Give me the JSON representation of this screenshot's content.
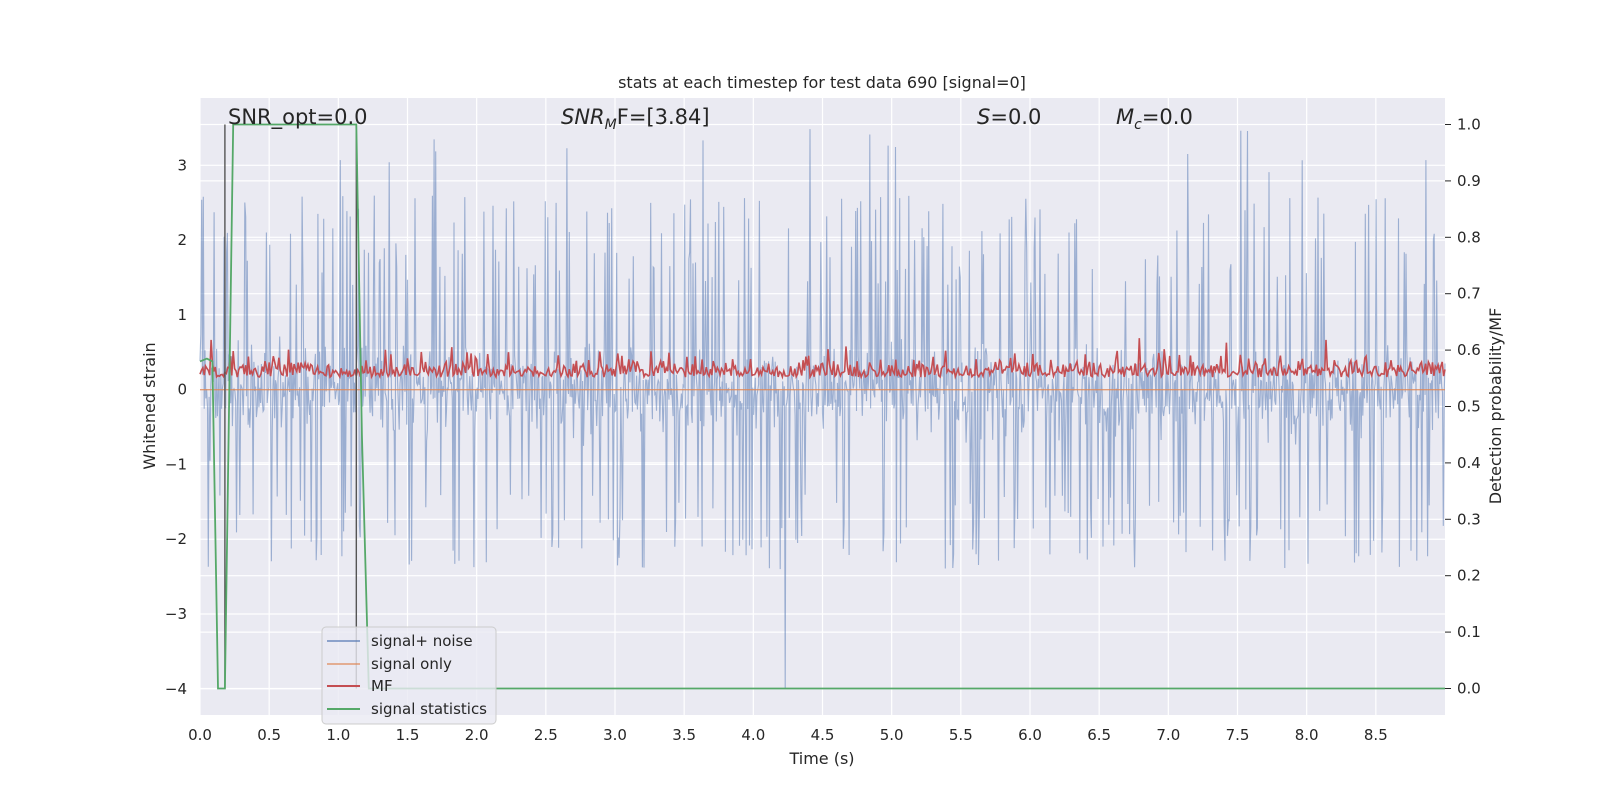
{
  "chart_data": {
    "type": "line",
    "title": "stats at each timestep for test data 690 [signal=0]",
    "xlabel": "Time (s)",
    "ylabel": "Whitened strain",
    "y2label": "Detection probability/MF",
    "xlim": [
      0.0,
      9.0
    ],
    "ylim": [
      -4.35,
      3.9
    ],
    "y2lim": [
      -0.047,
      1.047
    ],
    "xticks": [
      "0.0",
      "0.5",
      "1.0",
      "1.5",
      "2.0",
      "2.5",
      "3.0",
      "3.5",
      "4.0",
      "4.5",
      "5.0",
      "5.5",
      "6.0",
      "6.5",
      "7.0",
      "7.5",
      "8.0",
      "8.5"
    ],
    "yticks": [
      "3",
      "2",
      "1",
      "0",
      "−1",
      "−2",
      "−3",
      "−4"
    ],
    "y2ticks": [
      "1.0",
      "0.9",
      "0.8",
      "0.7",
      "0.6",
      "0.5",
      "0.4",
      "0.3",
      "0.2",
      "0.1",
      "0.0"
    ],
    "grid": true,
    "legend_position": "lower-left",
    "background": "#eaeaf2",
    "colors": {
      "signal_noise": "#4c72b0",
      "signal_only": "#dd8452",
      "mf": "#c44e52",
      "signal_statistics": "#55a868",
      "markers": "#555555"
    },
    "series": [
      {
        "name": "signal+ noise",
        "description": "whitened noise, roughly within -2 to +2.3 with peaks to 3.5 and a dip to -4.0 near 4.23 s"
      },
      {
        "name": "signal only",
        "values_constant": 0.0
      },
      {
        "name": "MF",
        "axis": "y2",
        "range": [
          0.535,
          0.63
        ],
        "mean": 0.56
      },
      {
        "name": "signal statistics",
        "axis": "y2",
        "x": [
          0.0,
          0.05,
          0.09,
          0.13,
          0.18,
          0.24,
          1.13,
          1.17,
          1.22,
          9.0
        ],
        "values": [
          0.58,
          0.585,
          0.58,
          0.0,
          0.0,
          1.0,
          1.0,
          0.45,
          0.0,
          0.0
        ]
      }
    ],
    "vertical_markers_x": [
      0.18,
      1.13
    ],
    "annotations": [
      {
        "text": "SNR_opt=0.0"
      },
      {
        "text": "SNR",
        "sub": "M",
        "tail": "F=[3.84]"
      },
      {
        "text": "S",
        "tail": "=0.0"
      },
      {
        "text": "M",
        "sub": "c",
        "tail": "=0.0"
      }
    ]
  },
  "legend": [
    {
      "label": "signal+ noise"
    },
    {
      "label": "signal only"
    },
    {
      "label": "MF"
    },
    {
      "label": "signal statistics"
    }
  ]
}
